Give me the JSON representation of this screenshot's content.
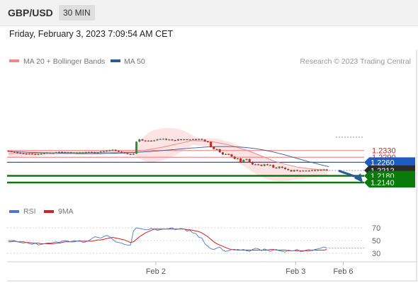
{
  "header": {
    "symbol": "GBP/USD",
    "timeframe": "30 MIN",
    "timestamp": "Friday, February 3, 2023 7:09:54 AM CET"
  },
  "legend": {
    "ma20": "MA 20 + Bollinger Bands",
    "ma50": "MA 50",
    "credit": "Research © 2023 Trading Central",
    "rsi": "RSI",
    "rsi_ma": "9MA"
  },
  "colors": {
    "ma20": "#f08a8a",
    "ma50": "#2a5a9a",
    "bands": "#fde0e0",
    "bull": "#2e8b3a",
    "bear": "#c0282a",
    "resistance": "#f28c8c",
    "pivot": "#1f5bc4",
    "support": "#0a7a0a",
    "current": "#2b2b2b",
    "arrow": "#2a5a9a",
    "rsi": "#4a78d0",
    "rsi_ma": "#d81f1f"
  },
  "chart_data": {
    "type": "candlestick",
    "x_ticks": [
      "Feb 2",
      "Feb 3",
      "Feb 6"
    ],
    "price_levels": [
      {
        "label": "1.2330",
        "value": 1.233,
        "kind": "resistance"
      },
      {
        "label": "1.2290",
        "value": 1.229,
        "kind": "resistance"
      },
      {
        "label": "1.2260",
        "value": 1.226,
        "kind": "pivot"
      },
      {
        "label": "1.2212",
        "value": 1.2212,
        "kind": "current"
      },
      {
        "label": "1.2180",
        "value": 1.218,
        "kind": "support"
      },
      {
        "label": "1.2140",
        "value": 1.214,
        "kind": "support"
      }
    ],
    "close": [
      1.2325,
      1.2322,
      1.2319,
      1.2316,
      1.2313,
      1.2311,
      1.2309,
      1.2311,
      1.2309,
      1.2306,
      1.2308,
      1.2311,
      1.2314,
      1.2316,
      1.2314,
      1.2315,
      1.2319,
      1.2321,
      1.232,
      1.2318,
      1.2319,
      1.2317,
      1.2317,
      1.2317,
      1.2318,
      1.2318,
      1.232,
      1.2321,
      1.232,
      1.2318,
      1.2319,
      1.2324,
      1.2326,
      1.2329,
      1.2331,
      1.2334,
      1.2328,
      1.2323,
      1.2318,
      1.2314,
      1.2309,
      1.2306,
      1.2311,
      1.2382,
      1.2396,
      1.2389,
      1.2385,
      1.2388,
      1.2386,
      1.239,
      1.2396,
      1.2398,
      1.2399,
      1.2393,
      1.2395,
      1.2391,
      1.2389,
      1.2396,
      1.2393,
      1.2396,
      1.2395,
      1.2395,
      1.2397,
      1.2393,
      1.2398,
      1.2394,
      1.2384,
      1.2381,
      1.2352,
      1.2338,
      1.2337,
      1.2319,
      1.2306,
      1.2309,
      1.2307,
      1.2294,
      1.2281,
      1.2283,
      1.2261,
      1.2274,
      1.2279,
      1.2262,
      1.2247,
      1.2248,
      1.2245,
      1.2239,
      1.2248,
      1.2244,
      1.2244,
      1.2229,
      1.2225,
      1.2234,
      1.2228,
      1.222,
      1.2214,
      1.2206,
      1.2214,
      1.221,
      1.2209,
      1.2211,
      1.2211,
      1.221,
      1.2214,
      1.221,
      1.2215,
      1.2214,
      1.2217,
      1.2212
    ],
    "ma20": [
      1.2311,
      1.2311,
      1.2312,
      1.2313,
      1.2313,
      1.2313,
      1.2313,
      1.2313,
      1.2314,
      1.2314,
      1.2314,
      1.2315,
      1.2315,
      1.2315,
      1.2315,
      1.2316,
      1.2316,
      1.2316,
      1.2316,
      1.2317,
      1.2317,
      1.2317,
      1.2317,
      1.2317,
      1.2317,
      1.2317,
      1.2318,
      1.2318,
      1.2318,
      1.2318,
      1.2318,
      1.2318,
      1.2318,
      1.2319,
      1.2319,
      1.2319,
      1.2319,
      1.2319,
      1.2319,
      1.232,
      1.232,
      1.232,
      1.232,
      1.2323,
      1.2326,
      1.2329,
      1.2332,
      1.2335,
      1.2338,
      1.2341,
      1.2344,
      1.2347,
      1.2351,
      1.2354,
      1.2358,
      1.2362,
      1.2366,
      1.237,
      1.2374,
      1.2378,
      1.2382,
      1.2386,
      1.2389,
      1.2388,
      1.2387,
      1.2387,
      1.2386,
      1.2384,
      1.2382,
      1.238,
      1.2377,
      1.2374,
      1.2371,
      1.2367,
      1.2363,
      1.2358,
      1.2353,
      1.2348,
      1.2342,
      1.2336,
      1.2331,
      1.2325,
      1.2318,
      1.2311,
      1.2304,
      1.2297,
      1.229,
      1.2283,
      1.2276,
      1.2269,
      1.2263,
      1.2258,
      1.2253,
      1.2248,
      1.2244,
      1.224,
      1.2236,
      1.2232,
      1.2229,
      1.2227,
      1.2225,
      1.2222,
      1.222,
      1.2219,
      1.2217,
      1.2216,
      1.2215,
      1.2214
    ],
    "bb_upper": [
      1.2331,
      1.2331,
      1.2331,
      1.2331,
      1.2332,
      1.2332,
      1.2332,
      1.2332,
      1.2332,
      1.2332,
      1.2332,
      1.2332,
      1.2332,
      1.2333,
      1.2333,
      1.2333,
      1.2333,
      1.2333,
      1.2333,
      1.2333,
      1.2333,
      1.2333,
      1.2333,
      1.2333,
      1.2333,
      1.2334,
      1.2334,
      1.2334,
      1.2334,
      1.2334,
      1.2334,
      1.2334,
      1.2334,
      1.2334,
      1.2335,
      1.2335,
      1.2335,
      1.2335,
      1.2335,
      1.2335,
      1.2335,
      1.2335,
      1.2335,
      1.2359,
      1.2382,
      1.2403,
      1.2421,
      1.2434,
      1.2444,
      1.2451,
      1.2456,
      1.246,
      1.2462,
      1.2464,
      1.2464,
      1.2462,
      1.246,
      1.2457,
      1.2452,
      1.2446,
      1.2438,
      1.2429,
      1.2419,
      1.2408,
      1.2402,
      1.2402,
      1.2402,
      1.2402,
      1.2402,
      1.2402,
      1.2401,
      1.2397,
      1.2392,
      1.2387,
      1.2382,
      1.2376,
      1.237,
      1.2363,
      1.2356,
      1.2349,
      1.2341,
      1.2334,
      1.2326,
      1.2318,
      1.2309,
      1.2301,
      1.2293,
      1.2285,
      1.2277,
      1.2269,
      1.2261,
      1.2254,
      1.2247,
      1.2241,
      1.2236,
      1.2232,
      1.2229,
      1.2227,
      1.2226,
      1.2225,
      1.2224,
      1.2224,
      1.2224,
      1.2224,
      1.2224,
      1.2223,
      1.2223,
      1.2222
    ],
    "bb_lower": [
      1.2292,
      1.2292,
      1.2293,
      1.2294,
      1.2295,
      1.2295,
      1.2296,
      1.2297,
      1.2297,
      1.2298,
      1.2298,
      1.2299,
      1.2299,
      1.23,
      1.23,
      1.2301,
      1.2301,
      1.2301,
      1.2302,
      1.2302,
      1.2303,
      1.2303,
      1.2303,
      1.2304,
      1.2304,
      1.2304,
      1.2304,
      1.2305,
      1.2305,
      1.2305,
      1.2305,
      1.2305,
      1.2305,
      1.2306,
      1.2306,
      1.2306,
      1.2306,
      1.2306,
      1.2306,
      1.2306,
      1.2306,
      1.2306,
      1.2306,
      1.2293,
      1.2282,
      1.2273,
      1.2266,
      1.2262,
      1.226,
      1.2261,
      1.2264,
      1.2268,
      1.2272,
      1.2278,
      1.2284,
      1.2292,
      1.2301,
      1.2311,
      1.2321,
      1.2332,
      1.2343,
      1.2354,
      1.2363,
      1.2361,
      1.2359,
      1.2357,
      1.2354,
      1.235,
      1.2346,
      1.234,
      1.2334,
      1.2325,
      1.2316,
      1.2306,
      1.2296,
      1.2285,
      1.2274,
      1.2262,
      1.225,
      1.2238,
      1.2227,
      1.2215,
      1.2204,
      1.2193,
      1.2183,
      1.2174,
      1.2166,
      1.216,
      1.2155,
      1.2151,
      1.2149,
      1.2148,
      1.2148,
      1.2149,
      1.2151,
      1.2153,
      1.2156,
      1.2158,
      1.2161,
      1.2163,
      1.2165,
      1.2168,
      1.217,
      1.2172,
      1.2174,
      1.2175,
      1.2177,
      1.2178
    ],
    "ma50": [
      1.2324,
      1.2324,
      1.2323,
      1.2322,
      1.2321,
      1.2321,
      1.232,
      1.2319,
      1.2319,
      1.2318,
      1.2317,
      1.2317,
      1.2316,
      1.2316,
      1.2315,
      1.2315,
      1.2315,
      1.2314,
      1.2314,
      1.2313,
      1.2313,
      1.2313,
      1.2313,
      1.2312,
      1.2312,
      1.2312,
      1.2312,
      1.2312,
      1.2312,
      1.2312,
      1.2312,
      1.2312,
      1.2313,
      1.2313,
      1.2313,
      1.2314,
      1.2314,
      1.2315,
      1.2315,
      1.2316,
      1.2317,
      1.2317,
      1.2318,
      1.2319,
      1.232,
      1.2321,
      1.2322,
      1.2323,
      1.2324,
      1.2326,
      1.2327,
      1.2329,
      1.233,
      1.2332,
      1.2333,
      1.2335,
      1.2336,
      1.2338,
      1.2339,
      1.2341,
      1.2342,
      1.2344,
      1.2345,
      1.2346,
      1.2347,
      1.2349,
      1.235,
      1.2351,
      1.2351,
      1.2352,
      1.2353,
      1.2353,
      1.2353,
      1.2353,
      1.2353,
      1.2353,
      1.2352,
      1.2351,
      1.235,
      1.2349,
      1.2347,
      1.2345,
      1.2343,
      1.2341,
      1.2338,
      1.2335,
      1.2332,
      1.2328,
      1.2325,
      1.2321,
      1.2317,
      1.2312,
      1.2308,
      1.2303,
      1.2298,
      1.2293,
      1.2288,
      1.2283,
      1.2278,
      1.2273,
      1.2268,
      1.2263,
      1.2259,
      1.2254,
      1.225,
      1.2245,
      1.2241,
      1.2237
    ],
    "rsi_ticks": [
      70,
      50,
      30
    ],
    "rsi": [
      50,
      50,
      50,
      48,
      47,
      46,
      47,
      45,
      44,
      46,
      43,
      44,
      45,
      46,
      46,
      47,
      48,
      47,
      49,
      50,
      49,
      48,
      50,
      49,
      50,
      47,
      48,
      50,
      53,
      56,
      55,
      54,
      56,
      58,
      56,
      52,
      48,
      47,
      46,
      44,
      43,
      43,
      65,
      70,
      69,
      68,
      67,
      67,
      69,
      68,
      66,
      67,
      68,
      68,
      69,
      70,
      67,
      68,
      69,
      68,
      65,
      66,
      62,
      61,
      55,
      54,
      45,
      41,
      37,
      36,
      38,
      40,
      35,
      33,
      34,
      36,
      35,
      36,
      35,
      36,
      34,
      33,
      36,
      38,
      37,
      34,
      37,
      35,
      33,
      35,
      36,
      34,
      33,
      32,
      35,
      34,
      34,
      36,
      33,
      33,
      35,
      36,
      34,
      36,
      37,
      38,
      40,
      38
    ],
    "rsi_ma": [
      48,
      48,
      49,
      48,
      48,
      48,
      47,
      47,
      46,
      46,
      46,
      45,
      45,
      45,
      45,
      45,
      46,
      46,
      47,
      48,
      48,
      48,
      48,
      49,
      49,
      49,
      49,
      49,
      49,
      50,
      51,
      51,
      52,
      53,
      54,
      55,
      54,
      53,
      52,
      51,
      49,
      47,
      48,
      52,
      56,
      59,
      62,
      64,
      66,
      68,
      68,
      68,
      68,
      68,
      68,
      68,
      68,
      68,
      68,
      68,
      67,
      67,
      66,
      65,
      64,
      62,
      59,
      56,
      52,
      48,
      45,
      43,
      41,
      39,
      37,
      36,
      36,
      35,
      35,
      35,
      35,
      35,
      35,
      35,
      35,
      35,
      35,
      35,
      36,
      36,
      35,
      35,
      35,
      35,
      34,
      34,
      34,
      34,
      34,
      34,
      34,
      34,
      35,
      35,
      35,
      35,
      35,
      36
    ],
    "forecast_arrow": {
      "from": 1.221,
      "to": 1.214
    }
  }
}
